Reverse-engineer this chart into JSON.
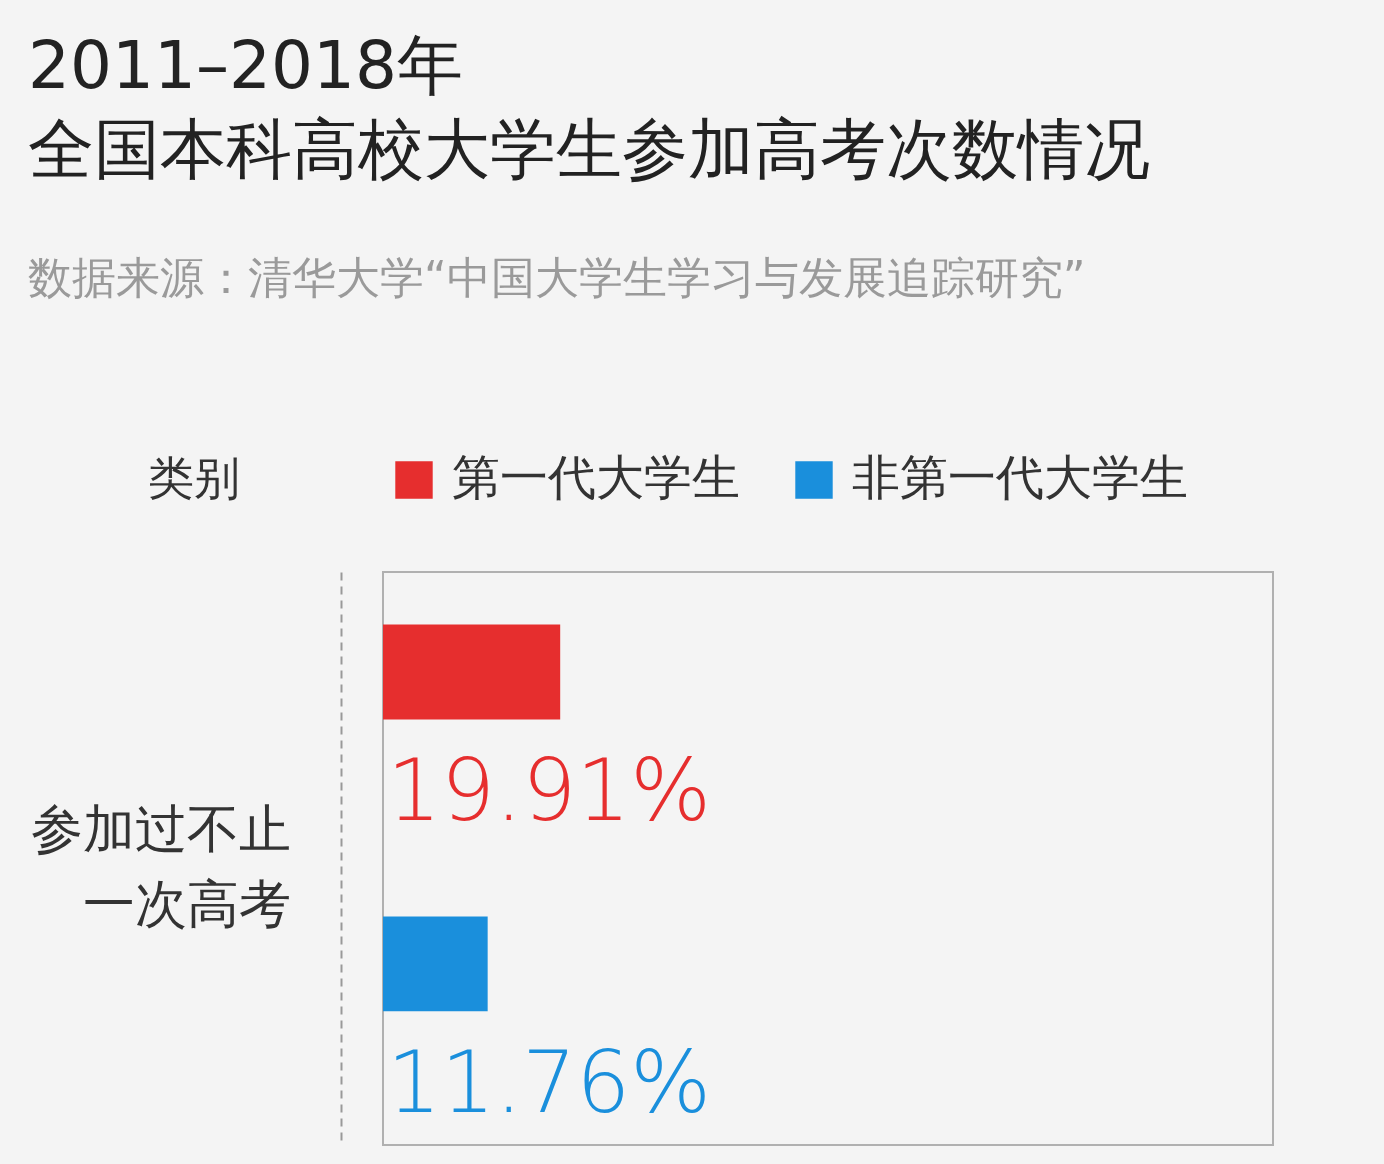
{
  "chart_data": {
    "type": "bar",
    "orientation": "horizontal",
    "stacked": true,
    "title": "2011–2018年",
    "subtitle": "全国本科高校大学生参加高考次数情况",
    "annotations": [
      "数据来源：清华大学“中国大学生学习与发展追踪研究”"
    ],
    "ylabel": "参加过不止一次高考",
    "legend_title": "类别",
    "categories": [
      null,
      null
    ],
    "series": [
      {
        "name": "第一代大学生",
        "color": "#e62e2e",
        "values": [
          19.91,
          null
        ],
        "value_labels": [
          "19.91%",
          null
        ]
      },
      {
        "name": "非第一代大学生",
        "color": "#1a8fdc",
        "values": [
          null,
          11.76
        ],
        "value_labels": [
          null,
          "11.76%"
        ]
      }
    ],
    "xlim": [
      0,
      100
    ],
    "tick_labels": false,
    "legend": "top"
  }
}
